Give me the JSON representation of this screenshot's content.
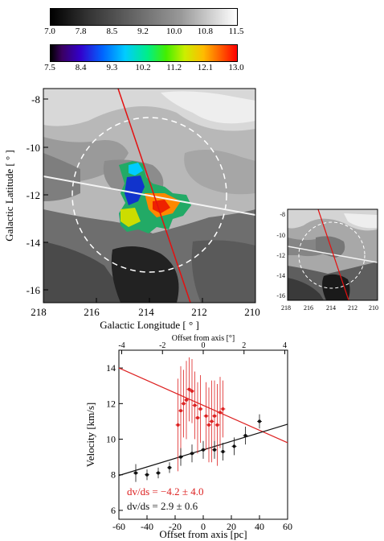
{
  "colorbars": {
    "gray": {
      "ticks": [
        "7.0",
        "7.8",
        "8.5",
        "9.2",
        "10.0",
        "10.8",
        "11.5"
      ]
    },
    "rainbow": {
      "ticks": [
        "7.5",
        "8.4",
        "9.3",
        "10.2",
        "11.2",
        "12.1",
        "13.0"
      ]
    }
  },
  "map_main": {
    "xlabel": "Galactic Longitude [ ° ]",
    "ylabel": "Galactic Latitude [ ° ]",
    "xticks": [
      "218",
      "216",
      "214",
      "212",
      "210"
    ],
    "yticks": [
      "-8",
      "-10",
      "-12",
      "-14",
      "-16"
    ]
  },
  "map_small": {
    "xticks": [
      "218",
      "216",
      "214",
      "212",
      "210"
    ],
    "yticks": [
      "-8",
      "-10",
      "-12",
      "-14",
      "-16"
    ]
  },
  "chart_data": {
    "type": "scatter",
    "xlabel": "Offset from axis [pc]",
    "x2label": "Offset from axis [°]",
    "ylabel": "Velocity [km/s]",
    "xlim": [
      -60,
      60
    ],
    "ylim": [
      5.5,
      15
    ],
    "xticks": [
      "-60",
      "-40",
      "-20",
      "0",
      "20",
      "40",
      "60"
    ],
    "x2ticks": [
      "-4",
      "-2",
      "0",
      "2",
      "4"
    ],
    "yticks": [
      "6",
      "8",
      "10",
      "12",
      "14"
    ],
    "series": [
      {
        "color": "#dd2222",
        "points": [
          {
            "x": -18,
            "y": 10.8,
            "err": 2.6
          },
          {
            "x": -16,
            "y": 11.6,
            "err": 2.5
          },
          {
            "x": -14,
            "y": 12.0,
            "err": 1.9
          },
          {
            "x": -12,
            "y": 12.2,
            "err": 2.2
          },
          {
            "x": -10,
            "y": 12.8,
            "err": 1.8
          },
          {
            "x": -8,
            "y": 12.7,
            "err": 1.8
          },
          {
            "x": -6,
            "y": 11.9,
            "err": 1.9
          },
          {
            "x": -4,
            "y": 11.2,
            "err": 2.0
          },
          {
            "x": -2,
            "y": 11.7,
            "err": 1.9
          },
          {
            "x": 2,
            "y": 11.3,
            "err": 1.9
          },
          {
            "x": 4,
            "y": 10.8,
            "err": 2.1
          },
          {
            "x": 6,
            "y": 11.0,
            "err": 2.3
          },
          {
            "x": 8,
            "y": 11.3,
            "err": 2.0
          },
          {
            "x": 10,
            "y": 10.8,
            "err": 2.3
          },
          {
            "x": 12,
            "y": 11.5,
            "err": 2.0
          },
          {
            "x": 14,
            "y": 11.7,
            "err": 1.6
          }
        ],
        "fit": {
          "slope": -0.035,
          "intercept": 11.9
        }
      },
      {
        "color": "#111111",
        "points": [
          {
            "x": -48,
            "y": 8.1,
            "err": 0.5
          },
          {
            "x": -40,
            "y": 8.0,
            "err": 0.3
          },
          {
            "x": -32,
            "y": 8.1,
            "err": 0.3
          },
          {
            "x": -24,
            "y": 8.4,
            "err": 0.3
          },
          {
            "x": -16,
            "y": 9.0,
            "err": 0.5
          },
          {
            "x": -8,
            "y": 9.2,
            "err": 0.5
          },
          {
            "x": 0,
            "y": 9.4,
            "err": 0.5
          },
          {
            "x": 8,
            "y": 9.4,
            "err": 0.5
          },
          {
            "x": 14,
            "y": 9.3,
            "err": 0.5
          },
          {
            "x": 22,
            "y": 9.6,
            "err": 0.5
          },
          {
            "x": 30,
            "y": 10.2,
            "err": 0.5
          },
          {
            "x": 40,
            "y": 11.0,
            "err": 0.4
          }
        ],
        "fit": {
          "slope": 0.024,
          "intercept": 9.4
        }
      }
    ],
    "annotations": [
      {
        "text": "dv/ds = −4.2 ± 4.0",
        "color": "#dd2222"
      },
      {
        "text": "dv/ds = 2.9 ± 0.6",
        "color": "#111111"
      }
    ]
  }
}
